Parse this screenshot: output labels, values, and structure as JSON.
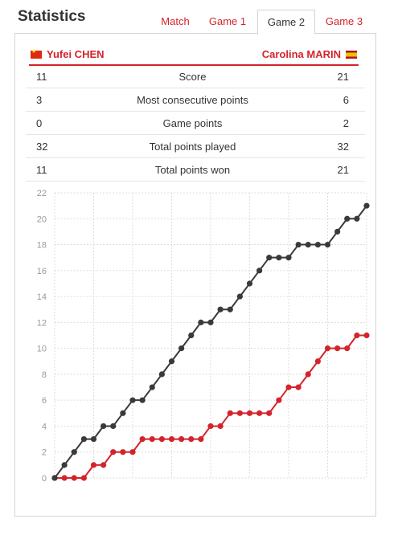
{
  "header": {
    "title": "Statistics"
  },
  "tabs": [
    {
      "label": "Match",
      "active": false
    },
    {
      "label": "Game 1",
      "active": false
    },
    {
      "label": "Game 2",
      "active": true
    },
    {
      "label": "Game 3",
      "active": false
    }
  ],
  "players": {
    "left": {
      "name": "Yufei CHEN",
      "flag": "china-flag"
    },
    "right": {
      "name": "Carolina MARIN",
      "flag": "spain-flag"
    }
  },
  "stats": [
    {
      "left": "11",
      "label": "Score",
      "right": "21"
    },
    {
      "left": "3",
      "label": "Most consecutive points",
      "right": "6"
    },
    {
      "left": "0",
      "label": "Game points",
      "right": "2"
    },
    {
      "left": "32",
      "label": "Total points played",
      "right": "32"
    },
    {
      "left": "11",
      "label": "Total points won",
      "right": "21"
    }
  ],
  "colors": {
    "accent": "#d5232c",
    "marin_line": "#3a3a3a",
    "chen_line": "#d5232c",
    "grid": "#dddddd"
  },
  "chart_data": {
    "type": "line",
    "title": "",
    "xlabel": "",
    "ylabel": "",
    "ylim": [
      0,
      22
    ],
    "yticks": [
      0,
      2,
      4,
      6,
      8,
      10,
      12,
      14,
      16,
      18,
      20,
      22
    ],
    "grid": true,
    "x": [
      0,
      1,
      2,
      3,
      4,
      5,
      6,
      7,
      8,
      9,
      10,
      11,
      12,
      13,
      14,
      15,
      16,
      17,
      18,
      19,
      20,
      21,
      22,
      23,
      24,
      25,
      26,
      27,
      28,
      29,
      30,
      31,
      32
    ],
    "series": [
      {
        "name": "Carolina MARIN",
        "color": "#3a3a3a",
        "values": [
          0,
          1,
          2,
          3,
          3,
          4,
          4,
          5,
          6,
          6,
          7,
          8,
          9,
          10,
          11,
          12,
          12,
          13,
          13,
          14,
          15,
          16,
          17,
          17,
          17,
          18,
          18,
          18,
          18,
          19,
          20,
          20,
          21
        ]
      },
      {
        "name": "Yufei CHEN",
        "color": "#d5232c",
        "values": [
          0,
          0,
          0,
          0,
          1,
          1,
          2,
          2,
          2,
          3,
          3,
          3,
          3,
          3,
          3,
          3,
          4,
          4,
          5,
          5,
          5,
          5,
          5,
          6,
          7,
          7,
          8,
          9,
          10,
          10,
          10,
          11,
          11
        ]
      }
    ]
  }
}
